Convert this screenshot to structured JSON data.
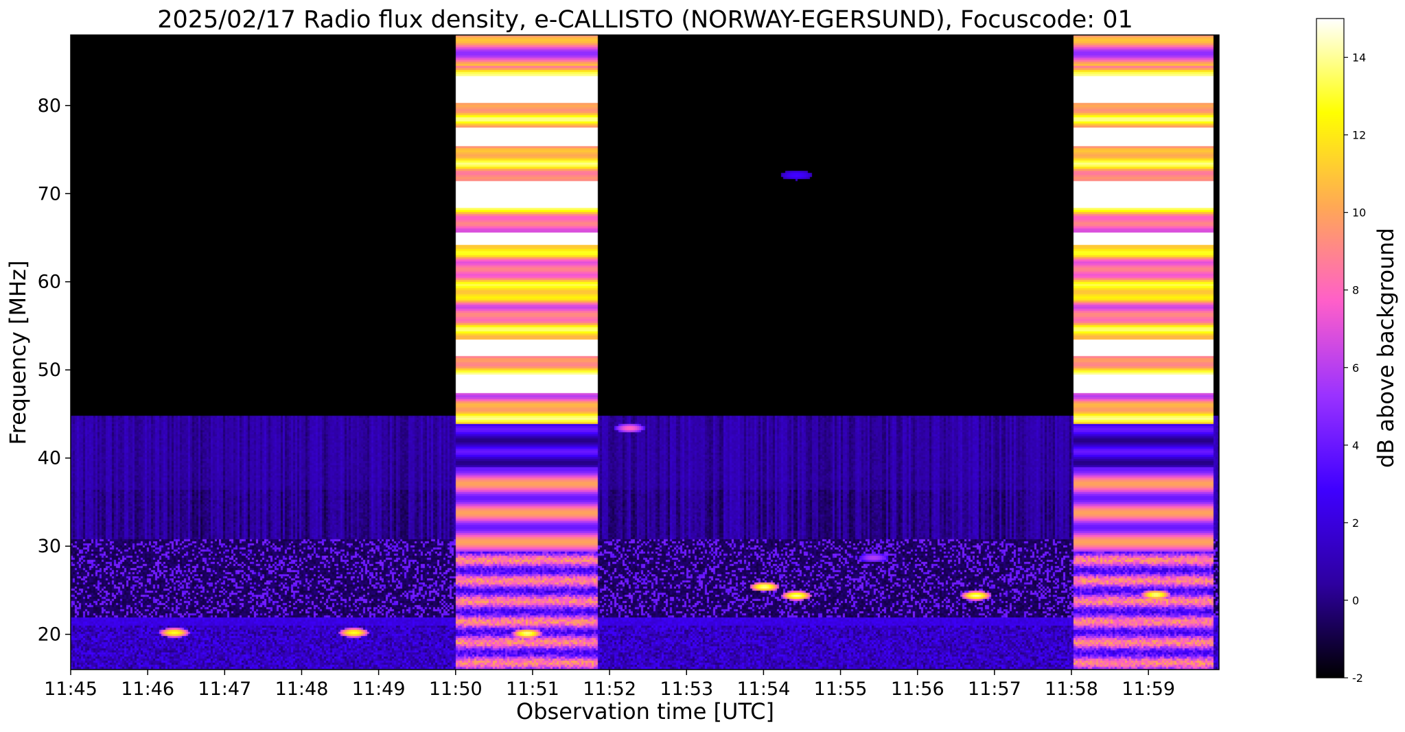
{
  "chart_data": {
    "type": "heatmap",
    "title": "2025/02/17  Radio flux density, e-CALLISTO (NORWAY-EGERSUND), Focuscode: 01",
    "xlabel": "Observation time [UTC]",
    "ylabel": "Frequency [MHz]",
    "colorbar_label": "dB above background",
    "colormap": "gnuplot2",
    "colormap_stops": [
      "#000000",
      "#2e00a0",
      "#3f00ff",
      "#9a32ff",
      "#ff5fc9",
      "#ffa855",
      "#ffff00",
      "#ffffff"
    ],
    "time_range": [
      "11:45:00",
      "11:59:55"
    ],
    "frequency_range_mhz": [
      16,
      88
    ],
    "color_range_db": [
      -2,
      15
    ],
    "x_ticks": [
      "11:45",
      "11:46",
      "11:47",
      "11:48",
      "11:49",
      "11:50",
      "11:51",
      "11:52",
      "11:53",
      "11:54",
      "11:55",
      "11:56",
      "11:57",
      "11:58",
      "11:59"
    ],
    "y_ticks": [
      20,
      30,
      40,
      50,
      60,
      70,
      80
    ],
    "colorbar_ticks": [
      -2,
      0,
      2,
      4,
      6,
      8,
      10,
      12,
      14
    ],
    "calibration_intervals": [
      {
        "start": "11:50:00",
        "end": "11:51:50"
      },
      {
        "start": "11:58:00",
        "end": "11:59:50"
      }
    ],
    "bright_bands_mhz": [
      {
        "lo": 80.5,
        "hi": 83.5,
        "db": 15
      },
      {
        "lo": 75.5,
        "hi": 77.5,
        "db": 15
      },
      {
        "lo": 68.5,
        "hi": 71.5,
        "db": 15
      },
      {
        "lo": 64.2,
        "hi": 65.8,
        "db": 15
      },
      {
        "lo": 51.8,
        "hi": 53.6,
        "db": 15
      },
      {
        "lo": 47.5,
        "hi": 49.5,
        "db": 15
      }
    ],
    "burst_features": [
      {
        "time": "11:46:20",
        "freq_mhz": 20.3,
        "db": 13
      },
      {
        "time": "11:48:40",
        "freq_mhz": 20.3,
        "db": 13
      },
      {
        "time": "11:50:55",
        "freq_mhz": 20.2,
        "db": 14
      },
      {
        "time": "11:54:00",
        "freq_mhz": 25.5,
        "db": 14
      },
      {
        "time": "11:54:25",
        "freq_mhz": 24.5,
        "db": 14
      },
      {
        "time": "11:56:45",
        "freq_mhz": 24.5,
        "db": 14
      },
      {
        "time": "11:59:05",
        "freq_mhz": 24.6,
        "db": 14
      },
      {
        "time": "11:55:25",
        "freq_mhz": 28.8,
        "db": 6
      },
      {
        "time": "11:52:15",
        "freq_mhz": 43.5,
        "db": 8
      },
      {
        "time": "11:54:25",
        "freq_mhz": 72.2,
        "db": 3
      }
    ]
  }
}
